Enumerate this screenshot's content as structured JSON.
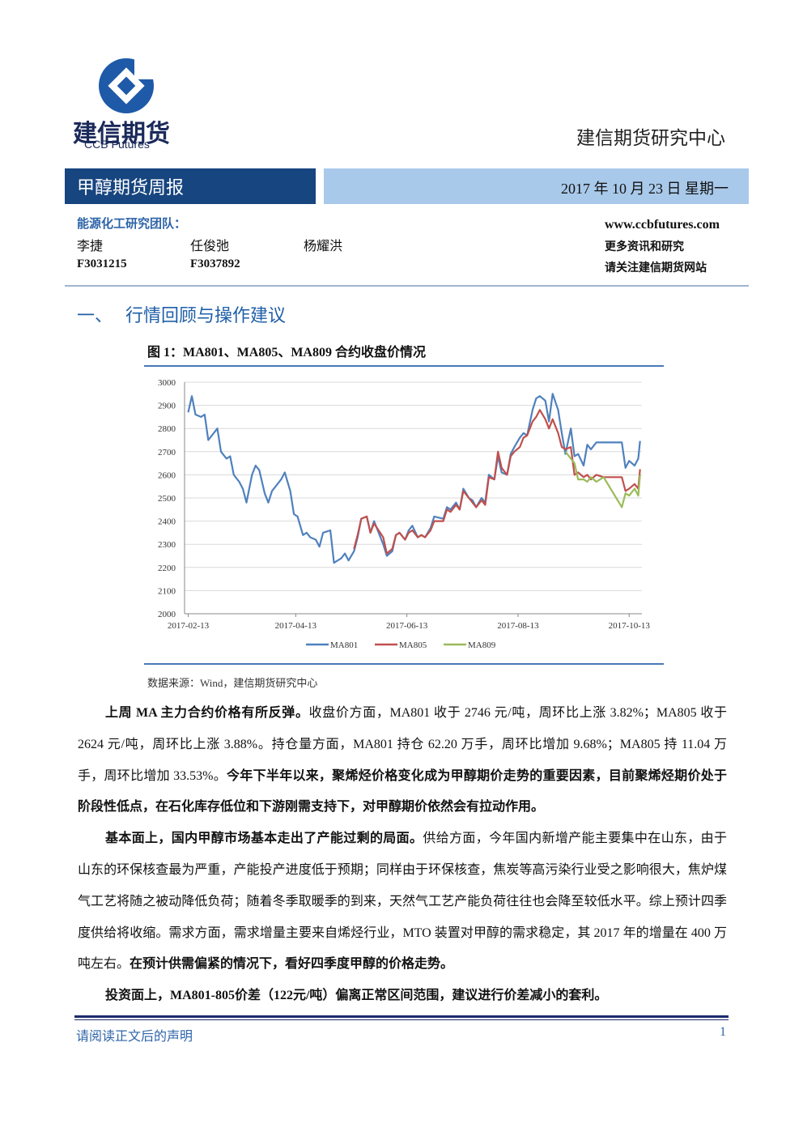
{
  "header": {
    "logo_cn": "建信期货",
    "logo_en": "CCB Futures",
    "center": "建信期货研究中心"
  },
  "banner": {
    "title": "甲醇期货周报",
    "date": "2017 年 10 月 23 日  星期一"
  },
  "team": {
    "label": "能源化工研究团队：",
    "members": [
      {
        "name": "李捷",
        "id": "F3031215"
      },
      {
        "name": "任俊弛",
        "id": "F3037892"
      },
      {
        "name": "杨耀洪"
      }
    ],
    "website": "www.ccbfutures.com",
    "notes": [
      "更多资讯和研究",
      "请关注建信期货网站"
    ]
  },
  "section": {
    "number": "一、",
    "title": "行情回顾与操作建议"
  },
  "figure": {
    "caption": "图 1：MA801、MA805、MA809 合约收盘价情况",
    "source": "数据来源：Wind，建信期货研究中心"
  },
  "chart_data": {
    "type": "line",
    "grid": true,
    "legend": "bottom",
    "xlim": [
      "2017-02-11",
      "2017-10-20"
    ],
    "xticks": [
      "2017-02-13",
      "2017-04-13",
      "2017-06-13",
      "2017-08-13",
      "2017-10-13"
    ],
    "ylim": [
      2000,
      3000
    ],
    "yticks": [
      2000,
      2100,
      2200,
      2300,
      2400,
      2500,
      2600,
      2700,
      2800,
      2900,
      3000
    ],
    "x": [
      "2017-02-13",
      "2017-02-15",
      "2017-02-17",
      "2017-02-20",
      "2017-02-22",
      "2017-02-24",
      "2017-02-27",
      "2017-03-01",
      "2017-03-03",
      "2017-03-06",
      "2017-03-08",
      "2017-03-10",
      "2017-03-13",
      "2017-03-15",
      "2017-03-17",
      "2017-03-20",
      "2017-03-22",
      "2017-03-24",
      "2017-03-27",
      "2017-03-29",
      "2017-03-31",
      "2017-04-05",
      "2017-04-07",
      "2017-04-10",
      "2017-04-12",
      "2017-04-14",
      "2017-04-17",
      "2017-04-19",
      "2017-04-21",
      "2017-04-24",
      "2017-04-26",
      "2017-04-28",
      "2017-05-02",
      "2017-05-04",
      "2017-05-08",
      "2017-05-10",
      "2017-05-12",
      "2017-05-15",
      "2017-05-17",
      "2017-05-19",
      "2017-05-22",
      "2017-05-24",
      "2017-05-26",
      "2017-05-31",
      "2017-06-02",
      "2017-06-05",
      "2017-06-07",
      "2017-06-09",
      "2017-06-12",
      "2017-06-14",
      "2017-06-16",
      "2017-06-19",
      "2017-06-21",
      "2017-06-23",
      "2017-06-26",
      "2017-06-28",
      "2017-07-03",
      "2017-07-05",
      "2017-07-07",
      "2017-07-10",
      "2017-07-12",
      "2017-07-14",
      "2017-07-17",
      "2017-07-19",
      "2017-07-21",
      "2017-07-24",
      "2017-07-26",
      "2017-07-28",
      "2017-07-31",
      "2017-08-02",
      "2017-08-04",
      "2017-08-07",
      "2017-08-09",
      "2017-08-11",
      "2017-08-14",
      "2017-08-16",
      "2017-08-18",
      "2017-08-21",
      "2017-08-23",
      "2017-08-25",
      "2017-08-28",
      "2017-08-30",
      "2017-09-01",
      "2017-09-04",
      "2017-09-06",
      "2017-09-08",
      "2017-09-11",
      "2017-09-13",
      "2017-09-15",
      "2017-09-18",
      "2017-09-20",
      "2017-09-22",
      "2017-09-25",
      "2017-09-29",
      "2017-10-09",
      "2017-10-11",
      "2017-10-13",
      "2017-10-16",
      "2017-10-18",
      "2017-10-19"
    ],
    "series": [
      {
        "name": "MA801",
        "color": "#4f81bd",
        "values": [
          2870,
          2940,
          2860,
          2850,
          2860,
          2750,
          2780,
          2800,
          2700,
          2670,
          2680,
          2600,
          2570,
          2540,
          2480,
          2600,
          2640,
          2620,
          2520,
          2480,
          2530,
          2580,
          2610,
          2530,
          2430,
          2420,
          2340,
          2350,
          2330,
          2320,
          2290,
          2350,
          2360,
          2220,
          2240,
          2260,
          2230,
          2270,
          2330,
          2410,
          2420,
          2350,
          2400,
          2300,
          2250,
          2270,
          2340,
          2350,
          2320,
          2360,
          2380,
          2330,
          2340,
          2330,
          2370,
          2420,
          2410,
          2460,
          2450,
          2480,
          2450,
          2540,
          2500,
          2490,
          2460,
          2500,
          2480,
          2600,
          2580,
          2680,
          2610,
          2600,
          2690,
          2720,
          2760,
          2780,
          2770,
          2880,
          2930,
          2940,
          2920,
          2830,
          2950,
          2880,
          2780,
          2690,
          2800,
          2680,
          2690,
          2640,
          2730,
          2710,
          2740,
          2740,
          2740,
          2630,
          2660,
          2640,
          2670,
          2746
        ]
      },
      {
        "name": "MA805",
        "color": "#c0504d",
        "values": [
          null,
          null,
          null,
          null,
          null,
          null,
          null,
          null,
          null,
          null,
          null,
          null,
          null,
          null,
          null,
          null,
          null,
          null,
          null,
          null,
          null,
          null,
          null,
          null,
          null,
          null,
          null,
          null,
          null,
          null,
          null,
          null,
          null,
          null,
          null,
          null,
          null,
          2280,
          2340,
          2410,
          2420,
          2350,
          2390,
          2330,
          2260,
          2280,
          2340,
          2350,
          2320,
          2350,
          2360,
          2330,
          2340,
          2330,
          2360,
          2400,
          2400,
          2450,
          2440,
          2470,
          2450,
          2530,
          2500,
          2480,
          2460,
          2490,
          2470,
          2590,
          2580,
          2700,
          2630,
          2600,
          2680,
          2700,
          2720,
          2760,
          2770,
          2830,
          2850,
          2880,
          2840,
          2800,
          2840,
          2780,
          2720,
          2710,
          2720,
          2600,
          2610,
          2590,
          2600,
          2580,
          2600,
          2590,
          2590,
          2530,
          2540,
          2560,
          2540,
          2624
        ]
      },
      {
        "name": "MA809",
        "color": "#9bbb59",
        "values": [
          null,
          null,
          null,
          null,
          null,
          null,
          null,
          null,
          null,
          null,
          null,
          null,
          null,
          null,
          null,
          null,
          null,
          null,
          null,
          null,
          null,
          null,
          null,
          null,
          null,
          null,
          null,
          null,
          null,
          null,
          null,
          null,
          null,
          null,
          null,
          null,
          null,
          null,
          null,
          null,
          null,
          null,
          null,
          null,
          null,
          null,
          null,
          null,
          null,
          null,
          null,
          null,
          null,
          null,
          null,
          null,
          null,
          null,
          null,
          null,
          null,
          null,
          null,
          null,
          null,
          null,
          null,
          null,
          null,
          null,
          null,
          null,
          null,
          null,
          null,
          null,
          null,
          null,
          null,
          null,
          null,
          null,
          null,
          null,
          null,
          2700,
          2670,
          2650,
          2580,
          2580,
          2570,
          2590,
          2570,
          2590,
          2460,
          2520,
          2510,
          2540,
          2510,
          2600
        ]
      }
    ]
  },
  "paragraphs": [
    [
      {
        "text": "上周 MA 主力合约价格有所反弹。",
        "bold": true
      },
      {
        "text": "收盘价方面，MA801 收于 2746 元/吨，周环比上涨 3.82%；MA805 收于 2624 元/吨，周环比上涨 3.88%。持仓量方面，MA801 持仓 62.20 万手，周环比增加 9.68%；MA805 持 11.04 万手，周环比增加 33.53%。",
        "bold": false
      },
      {
        "text": "今年下半年以来，聚烯烃价格变化成为甲醇期价走势的重要因素，目前聚烯烃期价处于阶段性低点，在石化库存低位和下游刚需支持下，对甲醇期价依然会有拉动作用。",
        "bold": true
      }
    ],
    [
      {
        "text": "基本面上，国内甲醇市场基本走出了产能过剩的局面。",
        "bold": true
      },
      {
        "text": "供给方面，今年国内新增产能主要集中在山东，由于山东的环保核查最为严重，产能投产进度低于预期；同样由于环保核查，焦炭等高污染行业受之影响很大，焦炉煤气工艺将随之被动降低负荷；随着冬季取暖季的到来，天然气工艺产能负荷往往也会降至较低水平。综上预计四季度供给将收缩。需求方面，需求增量主要来自烯烃行业，MTO 装置对甲醇的需求稳定，其 2017 年的增量在 400 万吨左右。",
        "bold": false
      },
      {
        "text": "在预计供需偏紧的情况下，看好四季度甲醇的价格走势。",
        "bold": true
      }
    ],
    [
      {
        "text": "投资面上，MA801-805价差（122元/吨）偏离正常区间范围，建议进行价差减小的套利。",
        "bold": true
      }
    ]
  ],
  "footer": {
    "disclaimer": "请阅读正文后的声明",
    "page": "1"
  }
}
